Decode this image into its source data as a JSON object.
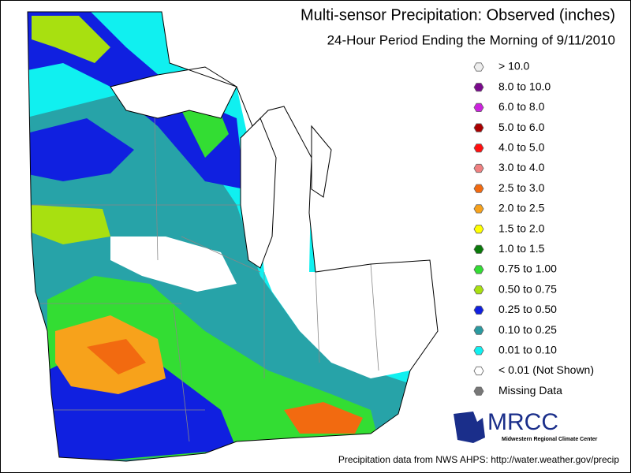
{
  "header": {
    "title": "Multi-sensor Precipitation: Observed (inches)",
    "subtitle": "24-Hour Period Ending the Morning of 9/11/2010"
  },
  "legend": [
    {
      "label": "> 10.0",
      "color": "#eeeeee"
    },
    {
      "label": "8.0 to 10.0",
      "color": "#7a0a8c"
    },
    {
      "label": "6.0 to 8.0",
      "color": "#cc22dd"
    },
    {
      "label": "5.0 to 6.0",
      "color": "#aa0000"
    },
    {
      "label": "4.0 to 5.0",
      "color": "#ff1010"
    },
    {
      "label": "3.0 to 4.0",
      "color": "#f08080"
    },
    {
      "label": "2.5 to 3.0",
      "color": "#f26a10"
    },
    {
      "label": "2.0 to 2.5",
      "color": "#f7a21b"
    },
    {
      "label": "1.5 to 2.0",
      "color": "#ffff00"
    },
    {
      "label": "1.0 to 1.5",
      "color": "#0a7a0a"
    },
    {
      "label": "0.75 to 1.00",
      "color": "#33dd33"
    },
    {
      "label": "0.50 to 0.75",
      "color": "#a8e010"
    },
    {
      "label": "0.25 to 0.50",
      "color": "#1020e0"
    },
    {
      "label": "0.10 to 0.25",
      "color": "#2a9aa0"
    },
    {
      "label": "0.01 to 0.10",
      "color": "#10f0f0"
    },
    {
      "label": "< 0.01 (Not Shown)",
      "color": "#ffffff"
    },
    {
      "label": "Missing Data",
      "color": "#777777"
    }
  ],
  "logo": {
    "name": "MRCC",
    "full_name": "Midwestern Regional Climate Center"
  },
  "footer": "Precipitation data from NWS AHPS:  http://water.weather.gov/precip"
}
